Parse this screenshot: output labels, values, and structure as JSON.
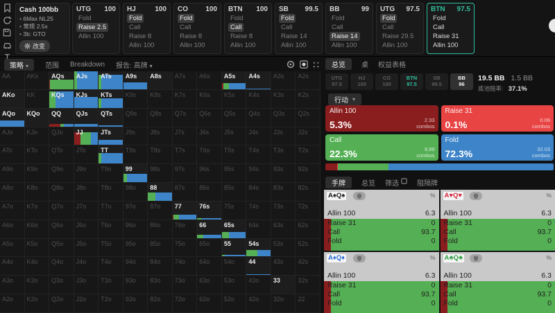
{
  "colors": {
    "allin": "#8a1e1e",
    "raise": "#e84444",
    "call": "#55b055",
    "fold": "#3d84c8",
    "accent_teal": "#2fbf9f",
    "suit_colors": {
      "spade": "#1a1a1a",
      "heart": "#d7263d",
      "diamond": "#2b6fd3",
      "club": "#2f9e44"
    }
  },
  "top_bar": {
    "rail_icons": [
      "bookmark-icon",
      "history-icon",
      "save-icon",
      "car-icon",
      "range-tool-icon"
    ],
    "info": {
      "title": "Cash 100bb",
      "items": [
        "6Max NL25",
        "常规 2.5x",
        "3b: GTO"
      ],
      "button_label": "改变"
    },
    "panels": [
      {
        "pos": "UTG",
        "stack": "100",
        "actions": [
          "Fold",
          "Raise 2.5",
          "Allin 100"
        ],
        "selected": 1,
        "active": false
      },
      {
        "pos": "HJ",
        "stack": "100",
        "actions": [
          "Fold",
          "Call",
          "Raise 8",
          "Allin 100"
        ],
        "selected": 0,
        "active": false
      },
      {
        "pos": "CO",
        "stack": "100",
        "actions": [
          "Fold",
          "Call",
          "Raise 8",
          "Allin 100"
        ],
        "selected": 0,
        "active": false
      },
      {
        "pos": "BTN",
        "stack": "100",
        "actions": [
          "Fold",
          "Call",
          "Raise 8",
          "Allin 100"
        ],
        "selected": 1,
        "active": false
      },
      {
        "pos": "SB",
        "stack": "99.5",
        "actions": [
          "Fold",
          "Call",
          "Raise 14",
          "Allin 100"
        ],
        "selected": 0,
        "active": false
      },
      {
        "pos": "BB",
        "stack": "99",
        "actions": [
          "Fold",
          "Call",
          "Raise 14",
          "Allin 100"
        ],
        "selected": 2,
        "active": false
      },
      {
        "pos": "UTG",
        "stack": "97.5",
        "actions": [
          "Fold",
          "Call",
          "Raise 29.5",
          "Allin 100"
        ],
        "selected": 0,
        "active": false
      },
      {
        "pos": "BTN",
        "stack": "97.5",
        "actions": [
          "Fold",
          "Call",
          "Raise 31",
          "Allin 100"
        ],
        "selected": -1,
        "active": true
      }
    ]
  },
  "matrix": {
    "tabs": [
      {
        "label": "策略",
        "caret": true,
        "active": true
      },
      {
        "label": "范围",
        "caret": false,
        "active": false
      },
      {
        "label": "Breakdown",
        "caret": false,
        "active": false
      },
      {
        "label": "报告: 高牌",
        "caret": true,
        "active": false
      }
    ],
    "header_icons": [
      "donut-icon",
      "panel-circle-icon",
      "weights-icon",
      "columns-icon",
      "filled-square-icon"
    ],
    "rows": [
      [
        "AA",
        "AKs",
        "AQs",
        "AJs",
        "ATs",
        "A9s",
        "A8s",
        "A7s",
        "A6s",
        "A5s",
        "A4s",
        "A3s",
        "A2s"
      ],
      [
        "AKo",
        "KK",
        "KQs",
        "KJs",
        "KTs",
        "K9s",
        "K8s",
        "K7s",
        "K6s",
        "K5s",
        "K4s",
        "K3s",
        "K2s"
      ],
      [
        "AQo",
        "KQo",
        "QQ",
        "QJs",
        "QTs",
        "Q9s",
        "Q8s",
        "Q7s",
        "Q6s",
        "Q5s",
        "Q4s",
        "Q3s",
        "Q2s"
      ],
      [
        "AJo",
        "KJo",
        "QJo",
        "JJ",
        "JTs",
        "J9s",
        "J8s",
        "J7s",
        "J6s",
        "J5s",
        "J4s",
        "J3s",
        "J2s"
      ],
      [
        "ATo",
        "KTo",
        "QTo",
        "JTo",
        "TT",
        "T9s",
        "T8s",
        "T7s",
        "T6s",
        "T5s",
        "T4s",
        "T3s",
        "T2s"
      ],
      [
        "A9o",
        "K9o",
        "Q9o",
        "J9o",
        "T9o",
        "99",
        "98s",
        "97s",
        "96s",
        "95s",
        "94s",
        "93s",
        "92s"
      ],
      [
        "A8o",
        "K8o",
        "Q8o",
        "J8o",
        "T8o",
        "98o",
        "88",
        "87s",
        "86s",
        "85s",
        "84s",
        "83s",
        "82s"
      ],
      [
        "A7o",
        "K7o",
        "Q7o",
        "J7o",
        "T7o",
        "97o",
        "87o",
        "77",
        "76s",
        "75s",
        "74s",
        "73s",
        "72s"
      ],
      [
        "A6o",
        "K6o",
        "Q6o",
        "J6o",
        "T6o",
        "96o",
        "86o",
        "76o",
        "66",
        "65s",
        "64s",
        "63s",
        "62s"
      ],
      [
        "A5o",
        "K5o",
        "Q5o",
        "J5o",
        "T5o",
        "95o",
        "85o",
        "75o",
        "65o",
        "55",
        "54s",
        "53s",
        "52s"
      ],
      [
        "A4o",
        "K4o",
        "Q4o",
        "J4o",
        "T4o",
        "94o",
        "84o",
        "74o",
        "64o",
        "54o",
        "44",
        "43s",
        "42s"
      ],
      [
        "A3o",
        "K3o",
        "Q3o",
        "J3o",
        "T3o",
        "93o",
        "83o",
        "73o",
        "63o",
        "53o",
        "43o",
        "33",
        "32s"
      ],
      [
        "A2o",
        "K2o",
        "Q2o",
        "J2o",
        "T2o",
        "92o",
        "82o",
        "72o",
        "62o",
        "52o",
        "42o",
        "32o",
        "22"
      ]
    ],
    "bright_no_bar": [
      "A8s",
      "AKo",
      "KQo",
      "33"
    ],
    "bars": {
      "AQs": {
        "h": 55,
        "segs": [
          [
            "allin",
            4
          ],
          [
            "call",
            96
          ]
        ]
      },
      "AJs": {
        "h": 100,
        "segs": [
          [
            "call",
            13
          ],
          [
            "fold",
            87
          ]
        ]
      },
      "ATs": {
        "h": 82,
        "segs": [
          [
            "call",
            12
          ],
          [
            "fold",
            88
          ]
        ]
      },
      "A9s": {
        "h": 38,
        "segs": [
          [
            "fold",
            100
          ]
        ]
      },
      "A5s": {
        "h": 33,
        "segs": [
          [
            "allin",
            7
          ],
          [
            "call",
            21
          ],
          [
            "fold",
            72
          ]
        ]
      },
      "A4s": {
        "h": 5,
        "segs": [
          [
            "fold",
            100
          ]
        ]
      },
      "KQs": {
        "h": 90,
        "segs": [
          [
            "call",
            25
          ],
          [
            "fold",
            75
          ]
        ]
      },
      "KJs": {
        "h": 60,
        "segs": [
          [
            "fold",
            100
          ]
        ]
      },
      "KTs": {
        "h": 52,
        "segs": [
          [
            "call",
            12
          ],
          [
            "fold",
            88
          ]
        ]
      },
      "AQo": {
        "h": 33,
        "segs": [
          [
            "fold",
            100
          ]
        ]
      },
      "QQ": {
        "h": 15,
        "segs": [
          [
            "allin",
            45
          ],
          [
            "call",
            17
          ],
          [
            "fold",
            38
          ]
        ]
      },
      "QJs": {
        "h": 14,
        "segs": [
          [
            "fold",
            100
          ]
        ]
      },
      "QTs": {
        "h": 5,
        "segs": [
          [
            "fold",
            100
          ]
        ]
      },
      "JJ": {
        "h": 70,
        "segs": [
          [
            "allin",
            28
          ],
          [
            "call",
            42
          ],
          [
            "fold",
            30
          ]
        ]
      },
      "JTs": {
        "h": 30,
        "segs": [
          [
            "fold",
            100
          ]
        ]
      },
      "TT": {
        "h": 58,
        "segs": [
          [
            "call",
            12
          ],
          [
            "fold",
            88
          ]
        ]
      },
      "99": {
        "h": 45,
        "segs": [
          [
            "call",
            15
          ],
          [
            "fold",
            85
          ]
        ]
      },
      "88": {
        "h": 45,
        "segs": [
          [
            "call",
            30
          ],
          [
            "fold",
            70
          ]
        ]
      },
      "77": {
        "h": 26,
        "segs": [
          [
            "allin",
            5
          ],
          [
            "call",
            22
          ],
          [
            "fold",
            73
          ]
        ]
      },
      "76s": {
        "h": 8,
        "segs": [
          [
            "call",
            20
          ],
          [
            "fold",
            80
          ]
        ]
      },
      "66": {
        "h": 16,
        "segs": [
          [
            "call",
            25
          ],
          [
            "fold",
            75
          ]
        ]
      },
      "65s": {
        "h": 34,
        "segs": [
          [
            "call",
            30
          ],
          [
            "fold",
            70
          ]
        ]
      },
      "55": {
        "h": 8,
        "segs": [
          [
            "call",
            12
          ],
          [
            "fold",
            88
          ]
        ]
      },
      "54s": {
        "h": 38,
        "segs": [
          [
            "call",
            45
          ],
          [
            "fold",
            55
          ]
        ]
      },
      "44": {
        "h": 5,
        "segs": [
          [
            "fold",
            100
          ]
        ]
      }
    }
  },
  "right_panel": {
    "tabs": [
      {
        "label": "总览",
        "active": true
      },
      {
        "label": "桌",
        "active": false
      },
      {
        "label": "权益表格",
        "active": false
      }
    ],
    "positions": [
      {
        "pos": "UTG",
        "stack": "97.5",
        "state": "dim"
      },
      {
        "pos": "HJ",
        "stack": "100",
        "state": "dim"
      },
      {
        "pos": "CO",
        "stack": "100",
        "state": "dim"
      },
      {
        "pos": "BTN",
        "stack": "97.5",
        "state": "hero"
      },
      {
        "pos": "SB",
        "stack": "99.5",
        "state": "dim"
      },
      {
        "pos": "BB",
        "stack": "86",
        "state": "hl"
      }
    ],
    "pot": "19.5 BB",
    "bet": "1.5 BB",
    "pot_odds_label": "底池赔率:",
    "pot_odds": "37.1%",
    "action_label": "行动",
    "combos_suffix": "combos",
    "actions": [
      {
        "name": "Allin 100",
        "pct": "5.3%",
        "pct_num": 5.3,
        "combos": "2.33",
        "color": "allin"
      },
      {
        "name": "Raise 31",
        "pct": "0.1%",
        "pct_num": 0.1,
        "combos": "0.06",
        "color": "raise"
      },
      {
        "name": "Call",
        "pct": "22.3%",
        "pct_num": 22.3,
        "combos": "9.86",
        "color": "call"
      },
      {
        "name": "Fold",
        "pct": "72.3%",
        "pct_num": 72.3,
        "combos": "32.03",
        "color": "fold"
      }
    ],
    "hand_tabs": [
      {
        "label": "手牌",
        "active": true
      },
      {
        "label": "总览",
        "active": false
      },
      {
        "label": "筛选",
        "active": false,
        "icon": "filter-box-icon"
      },
      {
        "label": "阻隔牌",
        "active": false
      }
    ],
    "percent_symbol": "%",
    "hands": [
      {
        "cards": [
          [
            "A",
            "spade"
          ],
          [
            "Q",
            "spade"
          ]
        ],
        "allin_pct": 6.3,
        "rows": [
          [
            "Allin 100",
            "6.3"
          ],
          [
            "Raise 31",
            "0"
          ],
          [
            "Call",
            "93.7"
          ],
          [
            "Fold",
            "0"
          ]
        ]
      },
      {
        "cards": [
          [
            "A",
            "heart"
          ],
          [
            "Q",
            "heart"
          ]
        ],
        "allin_pct": 6.3,
        "rows": [
          [
            "Allin 100",
            "6.3"
          ],
          [
            "Raise 31",
            "0"
          ],
          [
            "Call",
            "93.7"
          ],
          [
            "Fold",
            "0"
          ]
        ]
      },
      {
        "cards": [
          [
            "A",
            "diamond"
          ],
          [
            "Q",
            "diamond"
          ]
        ],
        "allin_pct": 6.3,
        "rows": [
          [
            "Allin 100",
            "6.3"
          ],
          [
            "Raise 31",
            "0"
          ],
          [
            "Call",
            "93.7"
          ],
          [
            "Fold",
            "0"
          ]
        ]
      },
      {
        "cards": [
          [
            "A",
            "club"
          ],
          [
            "Q",
            "club"
          ]
        ],
        "allin_pct": 6.3,
        "rows": [
          [
            "Allin 100",
            "6.3"
          ],
          [
            "Raise 31",
            "0"
          ],
          [
            "Call",
            "93.7"
          ],
          [
            "Fold",
            "0"
          ]
        ]
      }
    ],
    "suit_glyphs": {
      "spade": "♠",
      "heart": "♥",
      "diamond": "♦",
      "club": "♣"
    }
  }
}
